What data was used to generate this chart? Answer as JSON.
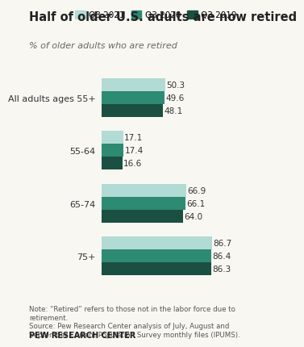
{
  "title": "Half of older U.S. adults are now retired",
  "subtitle": "% of older adults who are retired",
  "categories": [
    "All adults ages 55+",
    "55-64",
    "65-74",
    "75+"
  ],
  "series": [
    {
      "label": "Q3 2021",
      "color": "#b2dbd5",
      "values": [
        50.3,
        17.1,
        66.9,
        86.7
      ]
    },
    {
      "label": "Q3 2020",
      "color": "#2d8a73",
      "values": [
        49.6,
        17.4,
        66.1,
        86.4
      ]
    },
    {
      "label": "Q3 2019",
      "color": "#1a4f42",
      "values": [
        48.1,
        16.6,
        64.0,
        86.3
      ]
    }
  ],
  "xlim": [
    0,
    102
  ],
  "note": "Note: “Retired” refers to those not in the labor force due to\nretirement.\nSource: Pew Research Center analysis of July, August and\nSeptember Current Population Survey monthly files (IPUMS).",
  "source_label": "PEW RESEARCH CENTER",
  "background_color": "#f9f7f2"
}
